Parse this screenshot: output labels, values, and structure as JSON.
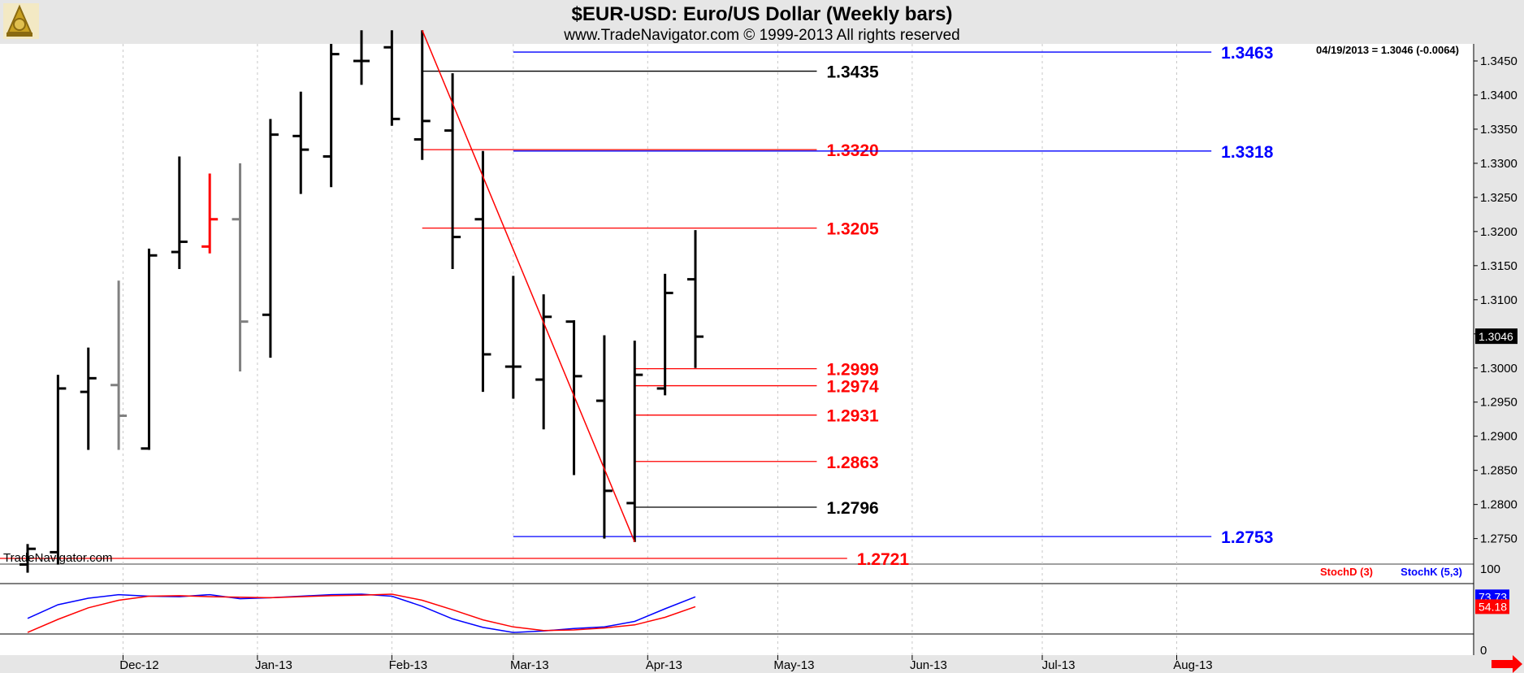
{
  "header": {
    "title": "$EUR-USD:  Euro/US Dollar  (Weekly bars)",
    "subtitle": "www.TradeNavigator.com © 1999-2013 All rights reserved",
    "last_quote": "04/19/2013 = 1.3046 (-0.0064)",
    "watermark": "TradeNavigator.com"
  },
  "colors": {
    "bar": "#000000",
    "bar_gray": "#808080",
    "bar_red": "#ff0000",
    "trendline": "#ff0000",
    "level_black": "#000000",
    "level_red": "#ff0000",
    "level_blue": "#0000ff",
    "stoch_d": "#ff0000",
    "stoch_k": "#0000ff",
    "grid": "#c8c8c8",
    "axis_bg": "#e6e6e6"
  },
  "chart_data": [
    {
      "type": "ohlc",
      "title": "$EUR-USD:  Euro/US Dollar  (Weekly bars)",
      "x_labels": [
        "Dec-12",
        "Jan-13",
        "Feb-13",
        "Mar-13",
        "Apr-13",
        "May-13",
        "Jun-13",
        "Jul-13",
        "Aug-13"
      ],
      "y_ticks": [
        "1.2750",
        "1.2800",
        "1.2850",
        "1.2900",
        "1.2950",
        "1.3000",
        "1.3050",
        "1.3100",
        "1.3150",
        "1.3200",
        "1.3250",
        "1.3300",
        "1.3350",
        "1.3400",
        "1.3450"
      ],
      "ylim": [
        1.2715,
        1.3475
      ],
      "last_price": "1.3046",
      "bars": [
        {
          "date": "11/09/2012",
          "open": 1.2712,
          "high": 1.2742,
          "low": 1.27,
          "close": 1.2735,
          "color": "black"
        },
        {
          "date": "11/16/2012",
          "open": 1.273,
          "high": 1.299,
          "low": 1.2712,
          "close": 1.297,
          "color": "black"
        },
        {
          "date": "11/23/2012",
          "open": 1.2965,
          "high": 1.303,
          "low": 1.288,
          "close": 1.2985,
          "color": "black"
        },
        {
          "date": "11/30/2012",
          "open": 1.2975,
          "high": 1.3128,
          "low": 1.288,
          "close": 1.293,
          "color": "gray"
        },
        {
          "date": "12/07/2012",
          "open": 1.2882,
          "high": 1.3175,
          "low": 1.288,
          "close": 1.3165,
          "color": "black"
        },
        {
          "date": "12/14/2012",
          "open": 1.317,
          "high": 1.331,
          "low": 1.3145,
          "close": 1.3185,
          "color": "black"
        },
        {
          "date": "12/21/2012",
          "open": 1.3178,
          "high": 1.3285,
          "low": 1.3168,
          "close": 1.3218,
          "color": "red"
        },
        {
          "date": "12/28/2012",
          "open": 1.3218,
          "high": 1.33,
          "low": 1.2995,
          "close": 1.3068,
          "color": "gray"
        },
        {
          "date": "01/04/2013",
          "open": 1.3078,
          "high": 1.3365,
          "low": 1.3015,
          "close": 1.3342,
          "color": "black"
        },
        {
          "date": "01/11/2013",
          "open": 1.334,
          "high": 1.3405,
          "low": 1.3255,
          "close": 1.332,
          "color": "black"
        },
        {
          "date": "01/18/2013",
          "open": 1.331,
          "high": 1.3475,
          "low": 1.3265,
          "close": 1.346,
          "color": "black"
        },
        {
          "date": "01/25/2013",
          "open": 1.345,
          "high": 1.3495,
          "low": 1.3415,
          "close": 1.345,
          "color": "black"
        },
        {
          "date": "02/01/2013",
          "open": 1.347,
          "high": 1.3495,
          "low": 1.3355,
          "close": 1.3365,
          "color": "black"
        },
        {
          "date": "02/08/2013",
          "open": 1.3335,
          "high": 1.3495,
          "low": 1.3305,
          "close": 1.3362,
          "color": "black"
        },
        {
          "date": "02/15/2013",
          "open": 1.3348,
          "high": 1.3432,
          "low": 1.3145,
          "close": 1.3192,
          "color": "black"
        },
        {
          "date": "02/22/2013",
          "open": 1.3218,
          "high": 1.3318,
          "low": 1.2965,
          "close": 1.302,
          "color": "black"
        },
        {
          "date": "03/01/2013",
          "open": 1.3002,
          "high": 1.3135,
          "low": 1.2955,
          "close": 1.3002,
          "color": "black"
        },
        {
          "date": "03/08/2013",
          "open": 1.2983,
          "high": 1.3108,
          "low": 1.291,
          "close": 1.3075,
          "color": "black"
        },
        {
          "date": "03/15/2013",
          "open": 1.3068,
          "high": 1.307,
          "low": 1.2843,
          "close": 1.2988,
          "color": "black"
        },
        {
          "date": "03/22/2013",
          "open": 1.2952,
          "high": 1.3048,
          "low": 1.275,
          "close": 1.282,
          "color": "black"
        },
        {
          "date": "03/29/2013",
          "open": 1.2802,
          "high": 1.304,
          "low": 1.2745,
          "close": 1.299,
          "color": "black"
        },
        {
          "date": "04/05/2013",
          "open": 1.297,
          "high": 1.3138,
          "low": 1.296,
          "close": 1.311,
          "color": "black"
        },
        {
          "date": "04/12/2013",
          "open": 1.313,
          "high": 1.3202,
          "low": 1.3,
          "close": 1.3046,
          "color": "black"
        }
      ],
      "trendline": {
        "start": {
          "date": "02/08/2013",
          "price": 1.3495
        },
        "end": {
          "date": "03/29/2013",
          "price": 1.2745
        }
      },
      "levels": [
        {
          "label": "1.3463",
          "value": 1.3463,
          "color": "blue",
          "from": "03/01/2013",
          "to": "08/09/2013"
        },
        {
          "label": "1.3435",
          "value": 1.3435,
          "color": "black",
          "from": "02/08/2013",
          "to": "05/10/2013"
        },
        {
          "label": "1.3320",
          "value": 1.332,
          "color": "red",
          "from": "02/08/2013",
          "to": "05/10/2013"
        },
        {
          "label": "1.3318",
          "value": 1.3318,
          "color": "blue",
          "from": "03/01/2013",
          "to": "08/09/2013"
        },
        {
          "label": "1.3205",
          "value": 1.3205,
          "color": "red",
          "from": "02/08/2013",
          "to": "05/10/2013"
        },
        {
          "label": "1.2999",
          "value": 1.2999,
          "color": "red",
          "from": "03/29/2013",
          "to": "05/10/2013"
        },
        {
          "label": "1.2974",
          "value": 1.2974,
          "color": "red",
          "from": "03/29/2013",
          "to": "05/10/2013"
        },
        {
          "label": "1.2931",
          "value": 1.2931,
          "color": "red",
          "from": "03/29/2013",
          "to": "05/10/2013"
        },
        {
          "label": "1.2863",
          "value": 1.2863,
          "color": "red",
          "from": "03/29/2013",
          "to": "05/10/2013"
        },
        {
          "label": "1.2796",
          "value": 1.2796,
          "color": "black",
          "from": "03/29/2013",
          "to": "05/10/2013"
        },
        {
          "label": "1.2753",
          "value": 1.2753,
          "color": "blue",
          "from": "03/01/2013",
          "to": "08/09/2013"
        },
        {
          "label": "1.2721",
          "value": 1.2721,
          "color": "red",
          "from": "11/02/2012",
          "to": "05/17/2013"
        }
      ]
    },
    {
      "type": "line",
      "legend": [
        "StochD (3)",
        "StochK (5,3)"
      ],
      "y_ticks": [
        "0",
        "100"
      ],
      "ylim": [
        0,
        100
      ],
      "x": [
        "11/09/2012",
        "11/16/2012",
        "11/23/2012",
        "11/30/2012",
        "12/07/2012",
        "12/14/2012",
        "12/21/2012",
        "12/28/2012",
        "01/04/2013",
        "01/11/2013",
        "01/18/2013",
        "01/25/2013",
        "02/01/2013",
        "02/08/2013",
        "02/15/2013",
        "02/22/2013",
        "03/01/2013",
        "03/08/2013",
        "03/15/2013",
        "03/22/2013",
        "03/29/2013",
        "04/05/2013",
        "04/12/2013"
      ],
      "series": [
        {
          "name": "StochK (5,3)",
          "color": "blue",
          "last_label": "73.73",
          "values": [
            31,
            58,
            71,
            78,
            75,
            74,
            78,
            70,
            72,
            75,
            78,
            79,
            75,
            55,
            30,
            13,
            3,
            6,
            11,
            14,
            25,
            50,
            73.73
          ]
        },
        {
          "name": "StochD (3)",
          "color": "red",
          "last_label": "54.18",
          "values": [
            3,
            29,
            52,
            67,
            75,
            76,
            74,
            73,
            72,
            74,
            76,
            77,
            79,
            67,
            48,
            28,
            14,
            7,
            8,
            12,
            18,
            33,
            54.18
          ]
        }
      ]
    }
  ]
}
